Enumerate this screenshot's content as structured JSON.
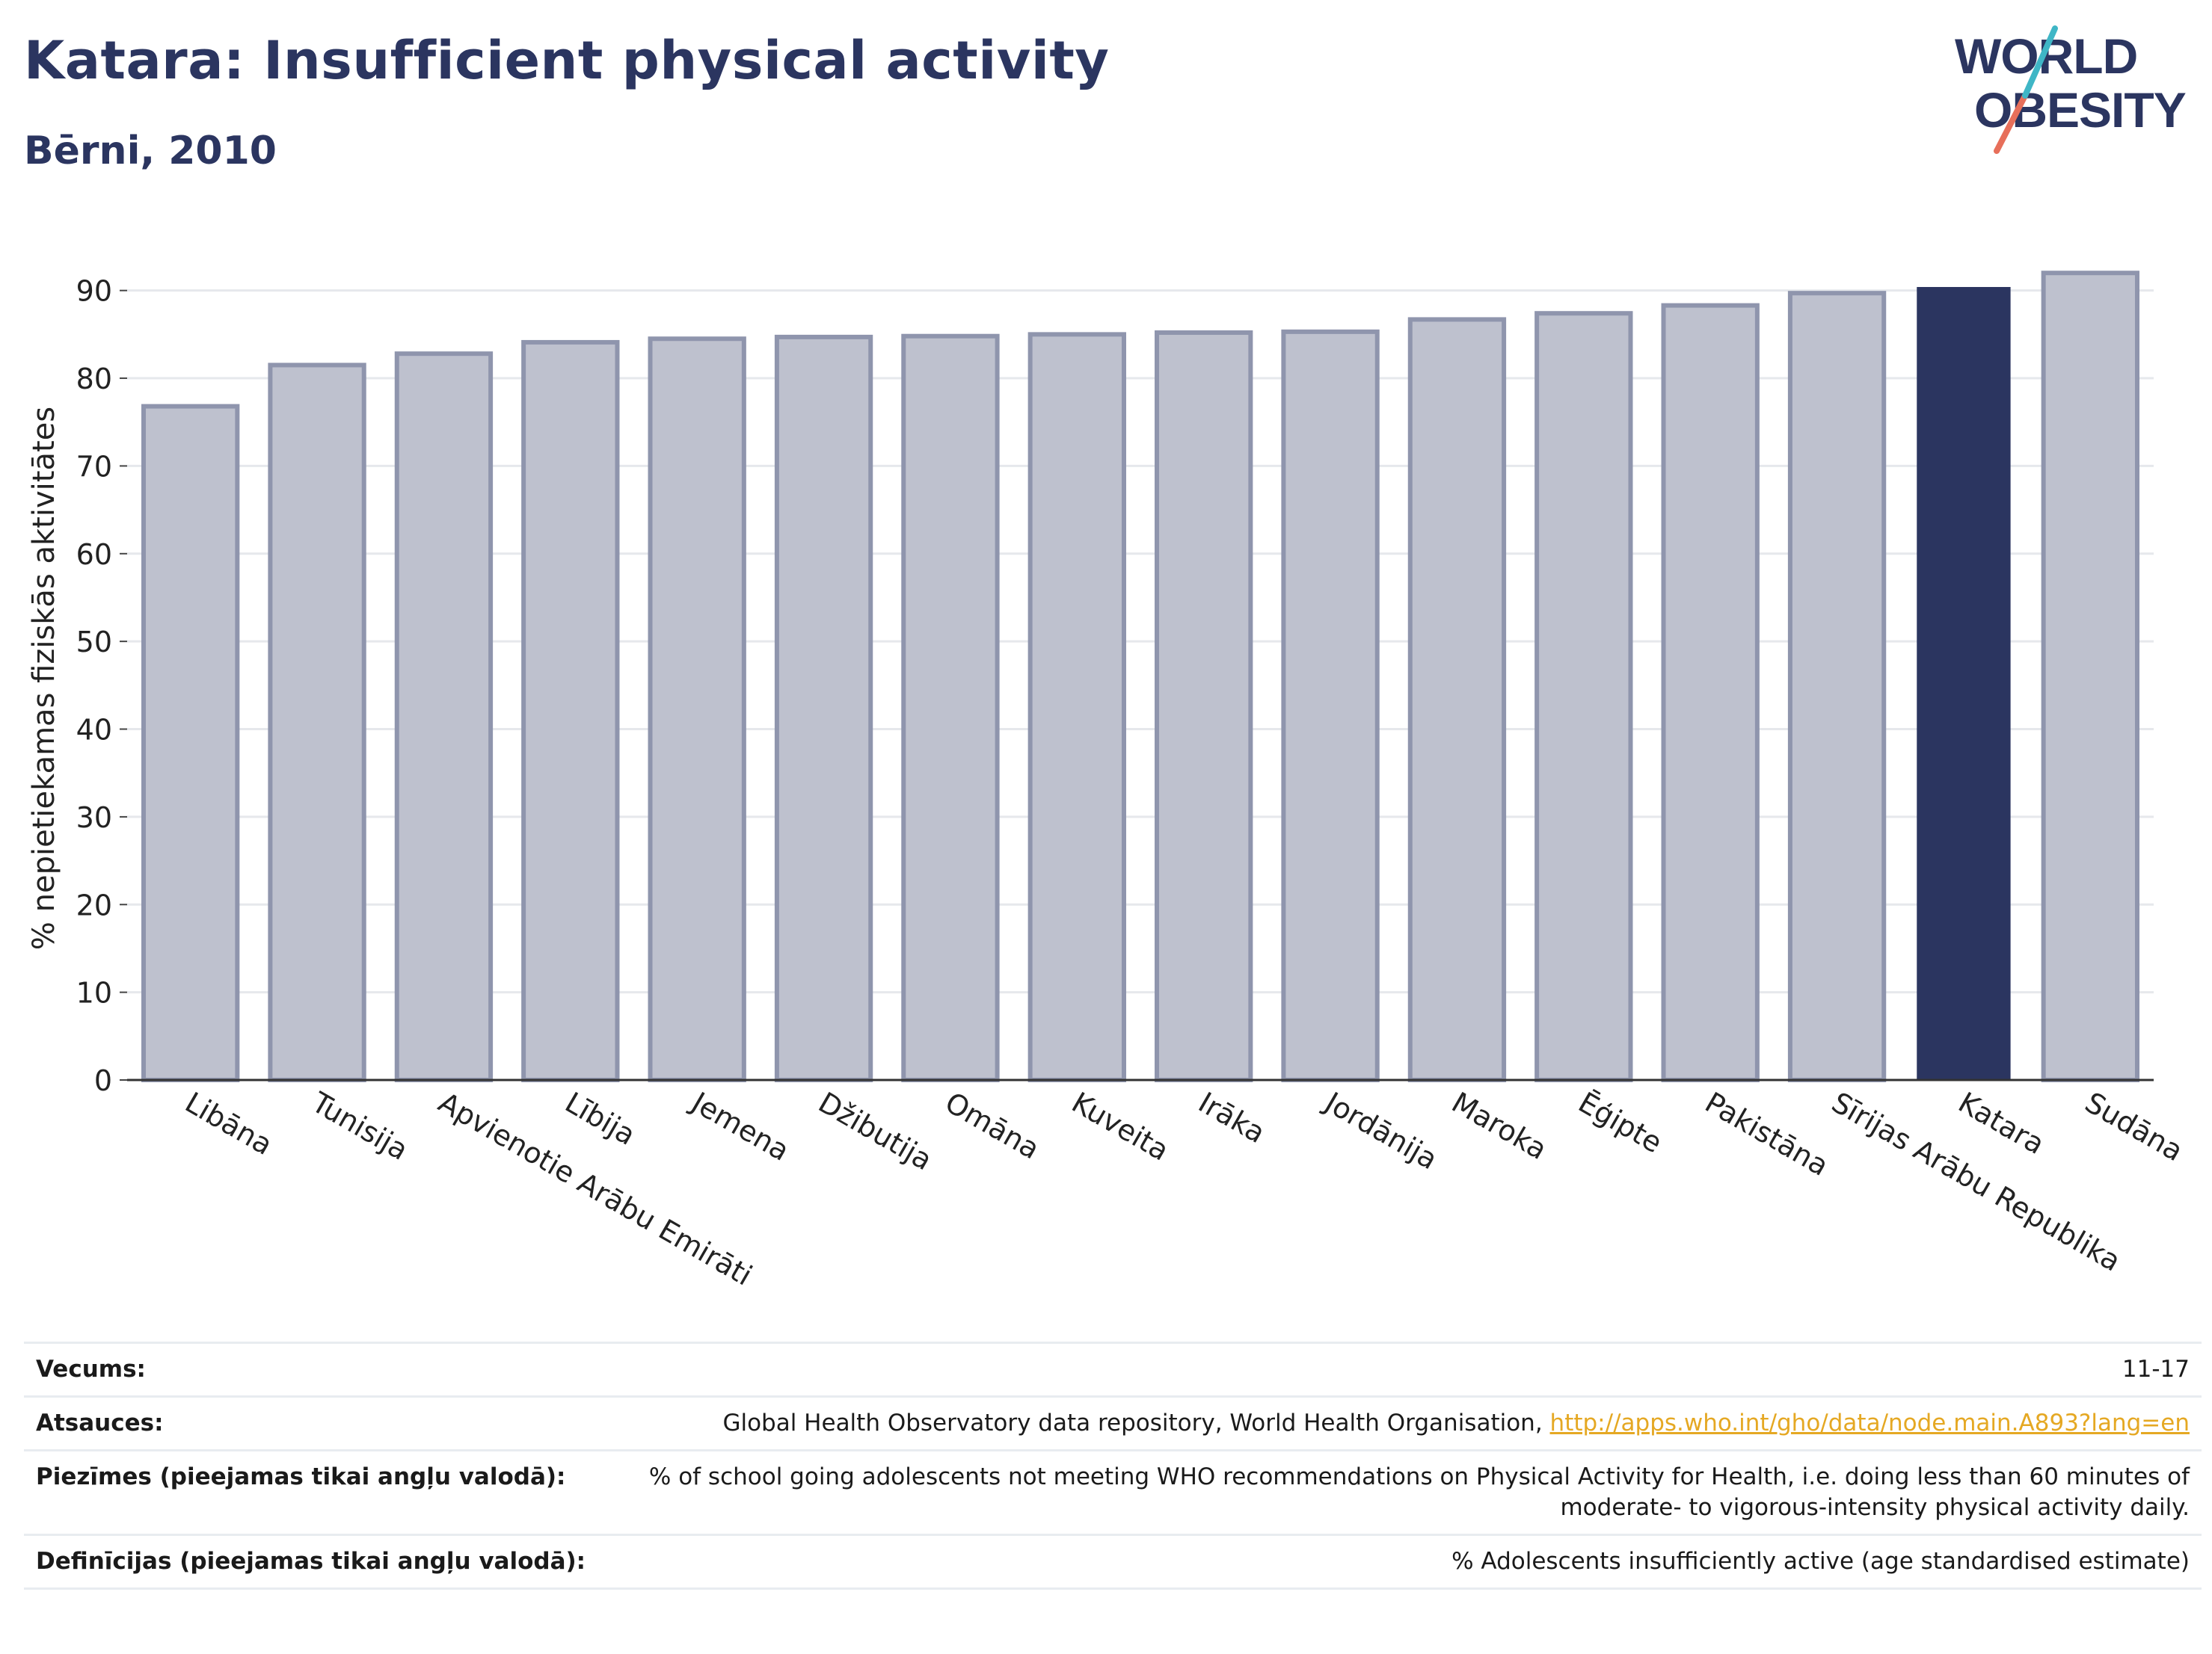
{
  "header": {
    "title": "Katara: Insufficient physical activity",
    "subtitle": "Bērni, 2010"
  },
  "logo": {
    "line1": "WORLD",
    "line2": "OBESITY"
  },
  "colors": {
    "highlight": "#2b3560",
    "bar_fill": "#bec1ce",
    "bar_stroke": "#8f95ad",
    "title": "#2b3560",
    "link": "#e5a823"
  },
  "chart_data": {
    "type": "bar",
    "title": "Katara: Insufficient physical activity",
    "subtitle": "Bērni, 2010",
    "xlabel": "",
    "ylabel": "% nepietiekamas fiziskās aktivitātes",
    "ylim": [
      0,
      95
    ],
    "yticks": [
      0,
      10,
      20,
      30,
      40,
      50,
      60,
      70,
      80,
      90
    ],
    "grid": true,
    "highlight": "Katara",
    "categories": [
      "Libāna",
      "Tunisija",
      "Apvienotie Arābu Emirāti",
      "Lībija",
      "Jemena",
      "Džibutija",
      "Omāna",
      "Kuveita",
      "Irāka",
      "Jordānija",
      "Maroka",
      "Ēģipte",
      "Pakistāna",
      "Sīrijas Arābu Republika",
      "Katara",
      "Sudāna"
    ],
    "values": [
      76.8,
      81.5,
      82.8,
      84.1,
      84.5,
      84.7,
      84.8,
      85.0,
      85.2,
      85.3,
      86.7,
      87.4,
      88.3,
      89.7,
      90.4,
      92.0
    ]
  },
  "meta": {
    "rows": [
      {
        "label": "Vecums:",
        "value": "11-17"
      },
      {
        "label": "Atsauces:",
        "value": "Global Health Observatory data repository, World Health Organisation, ",
        "link": "http://apps.who.int/gho/data/node.main.A893?lang=en"
      },
      {
        "label": "Piezīmes (pieejamas tikai angļu valodā):",
        "value": "% of school going adolescents not meeting WHO recommendations on Physical Activity for Health, i.e. doing less than 60 minutes of moderate- to vigorous-intensity physical activity daily."
      },
      {
        "label": "Definīcijas (pieejamas tikai angļu valodā):",
        "value": "% Adolescents insufficiently active (age standardised estimate)"
      }
    ]
  }
}
